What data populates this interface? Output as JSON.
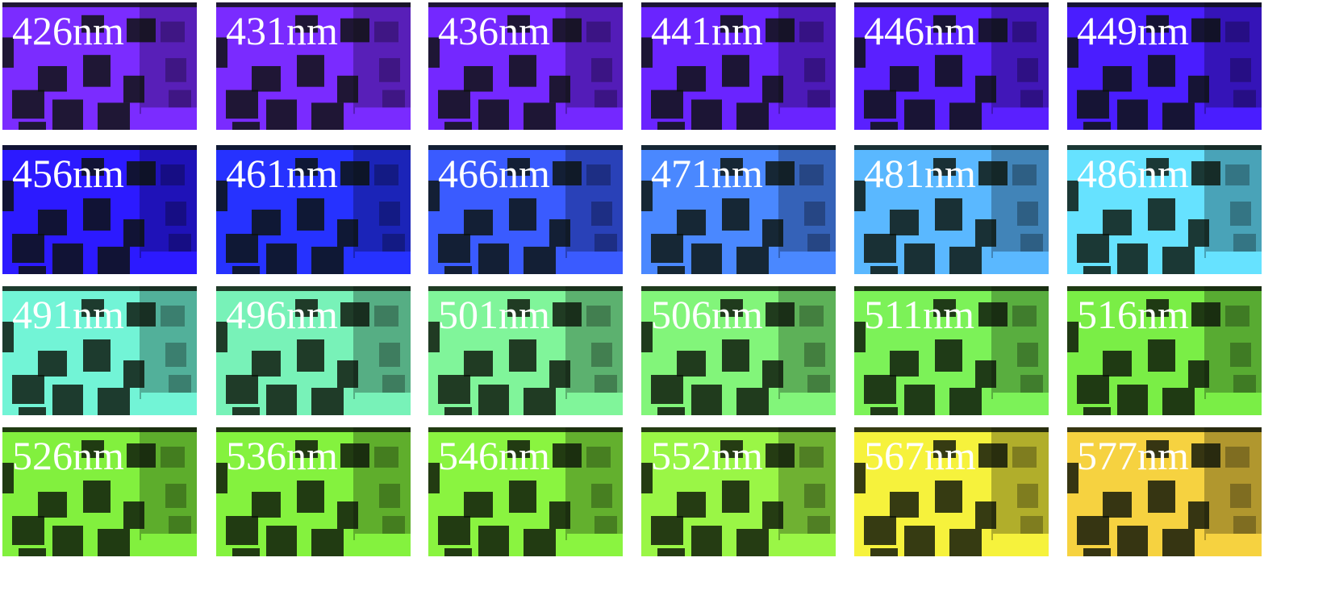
{
  "tiles": [
    {
      "label": "426nm",
      "color": "#7b2cff"
    },
    {
      "label": "431nm",
      "color": "#7a2bff"
    },
    {
      "label": "436nm",
      "color": "#7428ff"
    },
    {
      "label": "441nm",
      "color": "#6a24ff"
    },
    {
      "label": "446nm",
      "color": "#5a20ff"
    },
    {
      "label": "449nm",
      "color": "#4a1dff"
    },
    {
      "label": "456nm",
      "color": "#2c1aff"
    },
    {
      "label": "461nm",
      "color": "#2632ff"
    },
    {
      "label": "466nm",
      "color": "#3a5bff"
    },
    {
      "label": "471nm",
      "color": "#4a88ff"
    },
    {
      "label": "481nm",
      "color": "#5ab8ff"
    },
    {
      "label": "486nm",
      "color": "#66e2ff"
    },
    {
      "label": "491nm",
      "color": "#72f4d6"
    },
    {
      "label": "496nm",
      "color": "#78f2b8"
    },
    {
      "label": "501nm",
      "color": "#80f59a"
    },
    {
      "label": "506nm",
      "color": "#82f57a"
    },
    {
      "label": "511nm",
      "color": "#7cf258"
    },
    {
      "label": "516nm",
      "color": "#7aee46"
    },
    {
      "label": "526nm",
      "color": "#82f03e"
    },
    {
      "label": "536nm",
      "color": "#84f23e"
    },
    {
      "label": "546nm",
      "color": "#8af440"
    },
    {
      "label": "552nm",
      "color": "#9af646"
    },
    {
      "label": "567nm",
      "color": "#f6f23c"
    },
    {
      "label": "577nm",
      "color": "#f6d240"
    }
  ]
}
